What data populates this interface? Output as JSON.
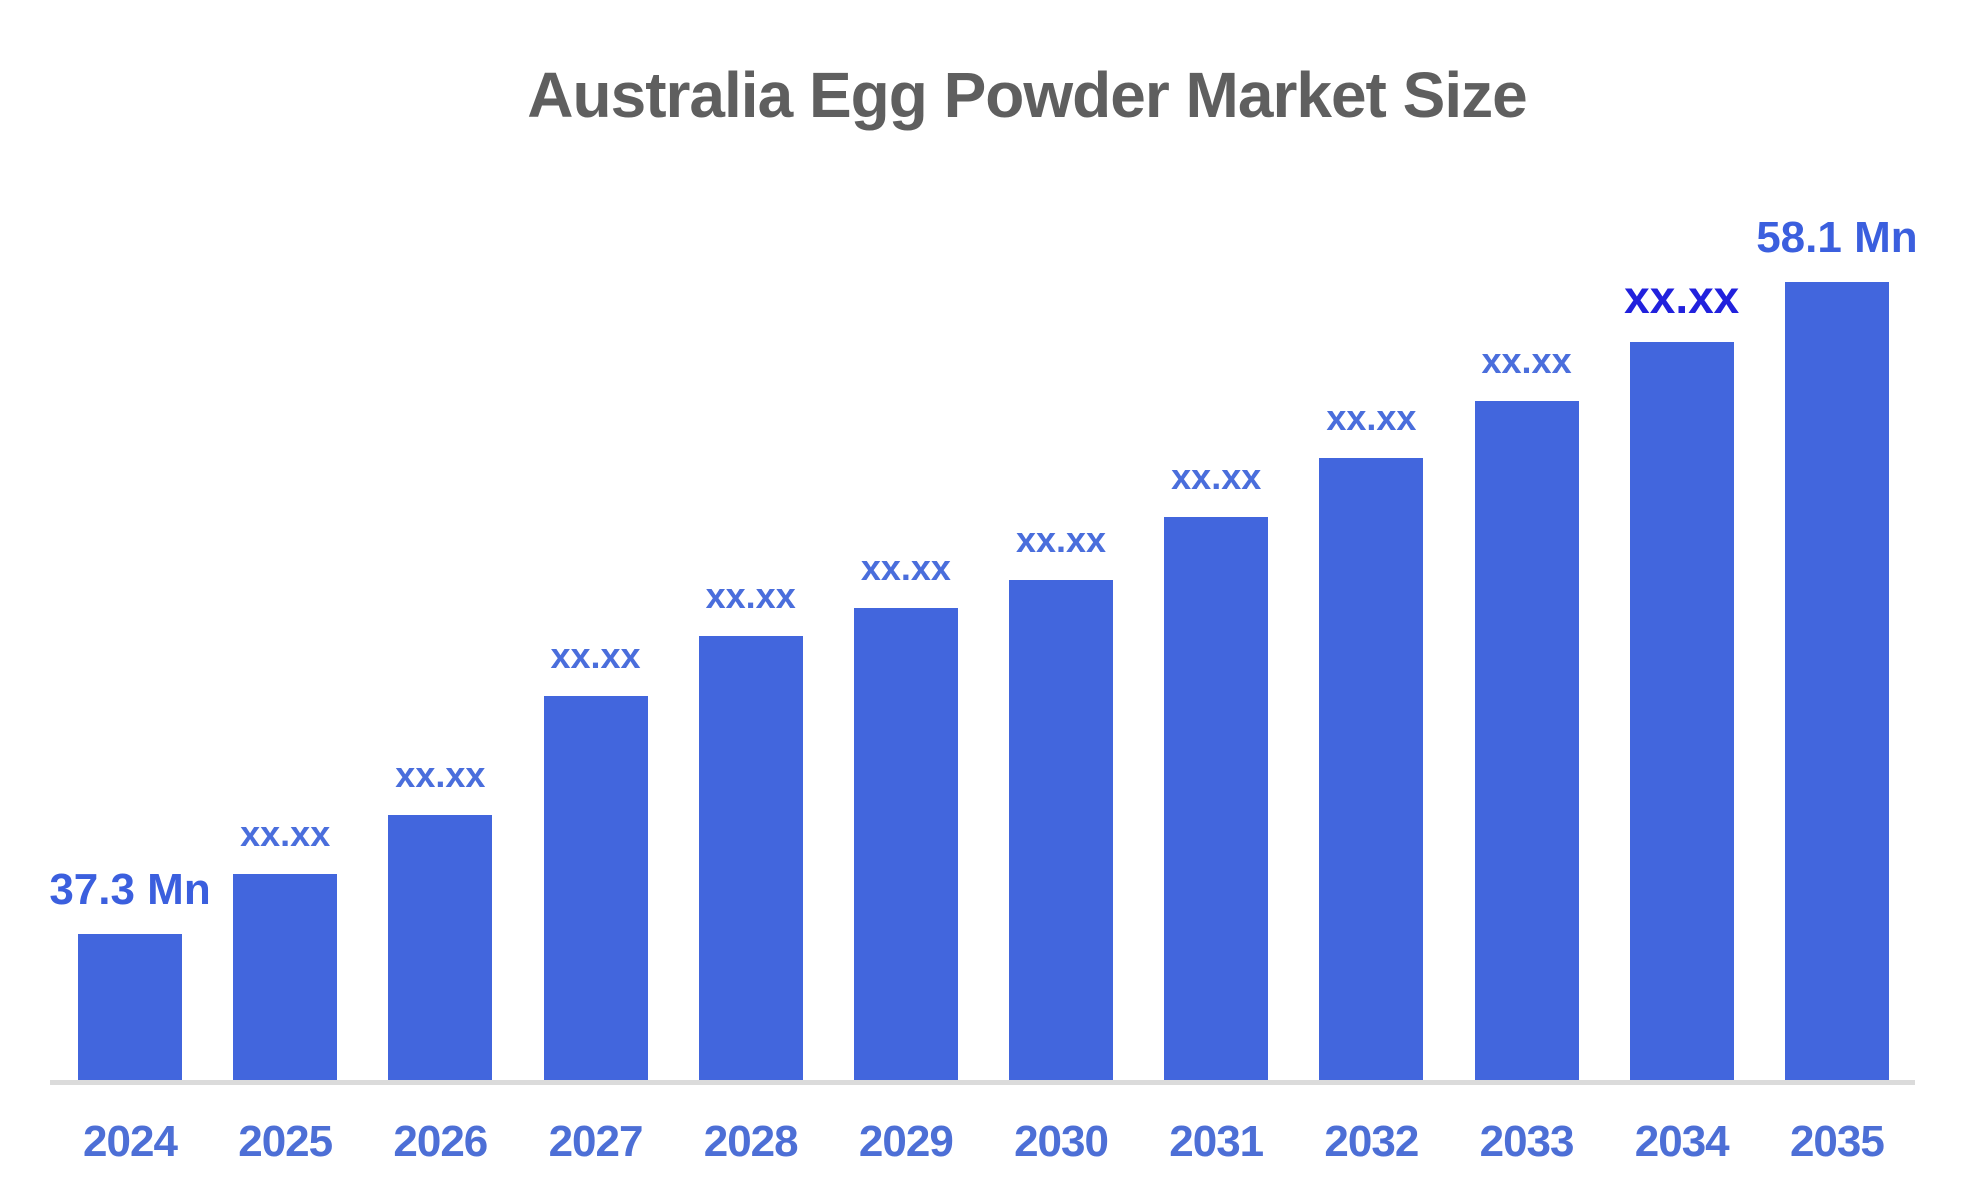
{
  "chart_data": {
    "type": "bar",
    "title": "Australia Egg Powder Market Size",
    "categories": [
      "2024",
      "2025",
      "2026",
      "2027",
      "2028",
      "2029",
      "2030",
      "2031",
      "2032",
      "2033",
      "2034",
      "2035"
    ],
    "values": [
      37.3,
      39.2,
      41.1,
      44.9,
      46.8,
      47.7,
      48.6,
      50.6,
      52.5,
      54.3,
      56.2,
      58.1
    ],
    "bar_labels": [
      "37.3 Mn",
      "xx.xx",
      "xx.xx",
      "xx.xx",
      "xx.xx",
      "xx.xx",
      "xx.xx",
      "xx.xx",
      "xx.xx",
      "xx.xx",
      "xx.xx",
      "58.1 Mn"
    ],
    "label_styles": [
      "endpoint",
      "normal",
      "normal",
      "normal",
      "normal",
      "normal",
      "normal",
      "normal",
      "normal",
      "normal",
      "highlight",
      "endpoint"
    ],
    "xlabel": "",
    "ylabel": "",
    "ylim": [
      32.6,
      60
    ],
    "grid": false,
    "legend": null,
    "colors": {
      "background": "#FFFFFF",
      "bar": "#4266DD",
      "label_normal": "#4A6EDC",
      "label_endpoint": "#3B5FDE",
      "label_highlight": "#2121DD",
      "year_label": "#4D6FD6",
      "title": "#5F5F5F",
      "axis_line": "#DBDBDB"
    }
  }
}
